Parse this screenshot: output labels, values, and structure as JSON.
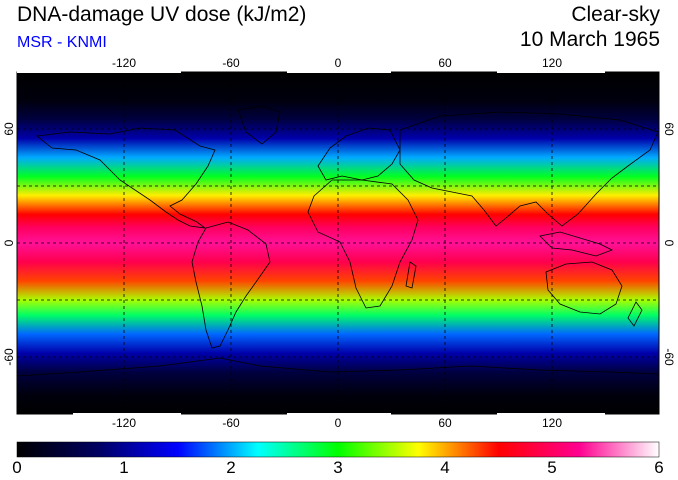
{
  "header": {
    "title": "DNA-damage UV dose (kJ/m2)",
    "subtitle": "MSR - KNMI",
    "subtitle_color": "#0000ff",
    "condition": "Clear-sky",
    "date": "10 March 1965"
  },
  "axes": {
    "lon_ticks": [
      "-120",
      "-60",
      "0",
      "60",
      "120"
    ],
    "lat_ticks": [
      "60",
      "0",
      "-60"
    ]
  },
  "colorbar": {
    "labels": [
      "0",
      "1",
      "2",
      "3",
      "4",
      "5",
      "6"
    ],
    "min": 0,
    "max": 6,
    "stops": [
      "#000000",
      "#000060",
      "#0000ff",
      "#00ffff",
      "#00ff00",
      "#ffff00",
      "#ff0000",
      "#ff0090",
      "#ffffff"
    ]
  },
  "map_data": {
    "projection": "equirectangular",
    "lon_range": [
      -180,
      180
    ],
    "lat_range": [
      -90,
      90
    ],
    "uv_by_latitude": [
      [
        90,
        0.0
      ],
      [
        75,
        0.1
      ],
      [
        65,
        0.5
      ],
      [
        55,
        1.1
      ],
      [
        45,
        2.0
      ],
      [
        35,
        2.9
      ],
      [
        25,
        3.8
      ],
      [
        15,
        4.5
      ],
      [
        8,
        5.0
      ],
      [
        0,
        5.3
      ],
      [
        -10,
        4.9
      ],
      [
        -20,
        4.3
      ],
      [
        -30,
        3.5
      ],
      [
        -38,
        2.7
      ],
      [
        -48,
        1.8
      ],
      [
        -58,
        1.1
      ],
      [
        -68,
        0.5
      ],
      [
        -80,
        0.1
      ],
      [
        -90,
        0.0
      ]
    ]
  }
}
